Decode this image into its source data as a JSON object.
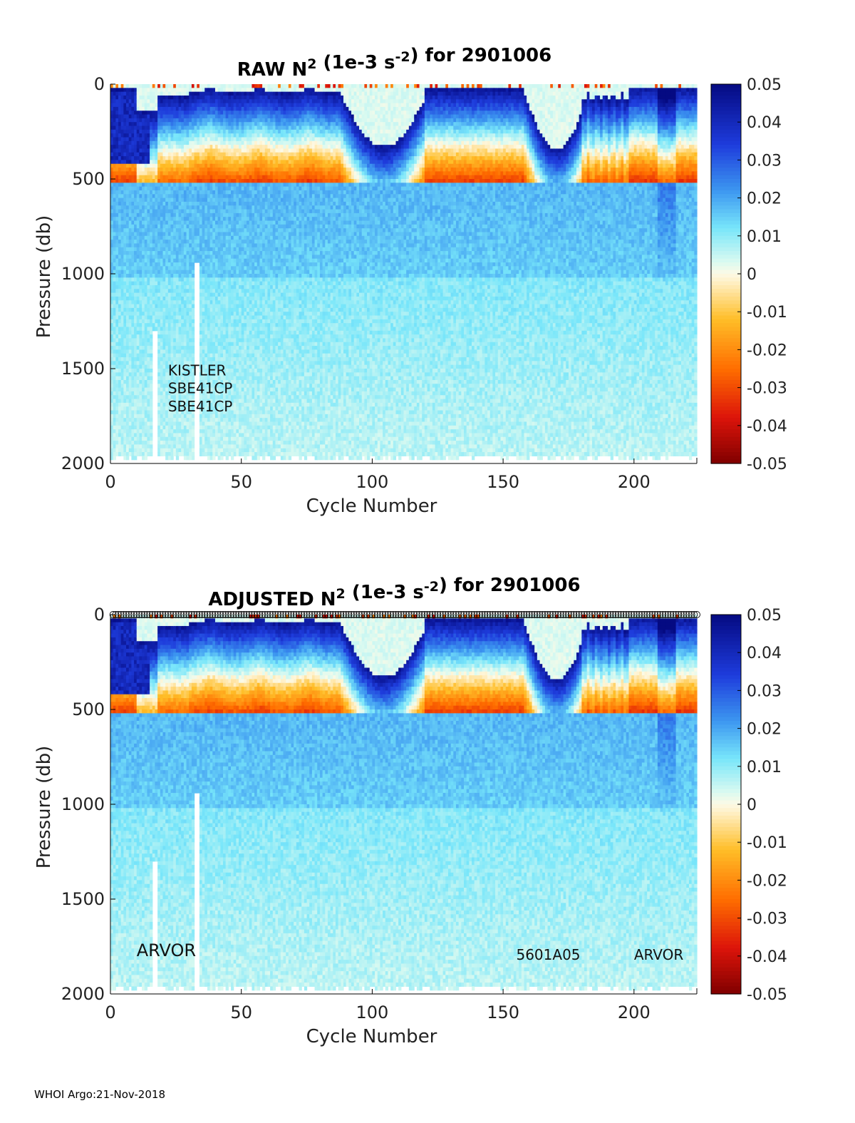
{
  "chart_data": [
    {
      "type": "heatmap",
      "title_main": "RAW N",
      "title_sup1": "2",
      "title_mid": " (1e-3 s",
      "title_sup2": "-2",
      "title_end": ") for 2901006",
      "xlabel": "Cycle Number",
      "ylabel": "Pressure (db)",
      "xlim": [
        0,
        224
      ],
      "ylim": [
        2000,
        0
      ],
      "xticks": [
        0,
        50,
        100,
        150,
        200
      ],
      "yticks": [
        0,
        500,
        1000,
        1500,
        2000
      ],
      "colorbar": {
        "range": [
          -0.05,
          0.05
        ],
        "ticks": [
          "0.05",
          "0.04",
          "0.03",
          "0.02",
          "0.01",
          "0",
          "-0.01",
          "-0.02",
          "-0.03",
          "-0.04",
          "-0.05"
        ]
      },
      "annotations": [
        {
          "text": "KISTLER",
          "x": 22,
          "y": 1535
        },
        {
          "text": "SBE41CP",
          "x": 22,
          "y": 1630
        },
        {
          "text": "SBE41CP",
          "x": 22,
          "y": 1725
        }
      ],
      "surface_markers": false
    },
    {
      "type": "heatmap",
      "title_main": "ADJUSTED N",
      "title_sup1": "2",
      "title_mid": " (1e-3 s",
      "title_sup2": "-2",
      "title_end": ") for 2901006",
      "xlabel": "Cycle Number",
      "ylabel": "Pressure (db)",
      "xlim": [
        0,
        224
      ],
      "ylim": [
        2000,
        0
      ],
      "xticks": [
        0,
        50,
        100,
        150,
        200
      ],
      "yticks": [
        0,
        500,
        1000,
        1500,
        2000
      ],
      "colorbar": {
        "range": [
          -0.05,
          0.05
        ],
        "ticks": [
          "0.05",
          "0.04",
          "0.03",
          "0.02",
          "0.01",
          "0",
          "-0.01",
          "-0.02",
          "-0.03",
          "-0.04",
          "-0.05"
        ]
      },
      "annotations": [
        {
          "text": "ARVOR",
          "x": 10,
          "y": 1800,
          "large": true
        },
        {
          "text": "5601A05",
          "x": 155,
          "y": 1820
        },
        {
          "text": "ARVOR",
          "x": 200,
          "y": 1820
        }
      ],
      "surface_markers": true
    }
  ],
  "footer": "WHOI Argo:21-Nov-2018"
}
